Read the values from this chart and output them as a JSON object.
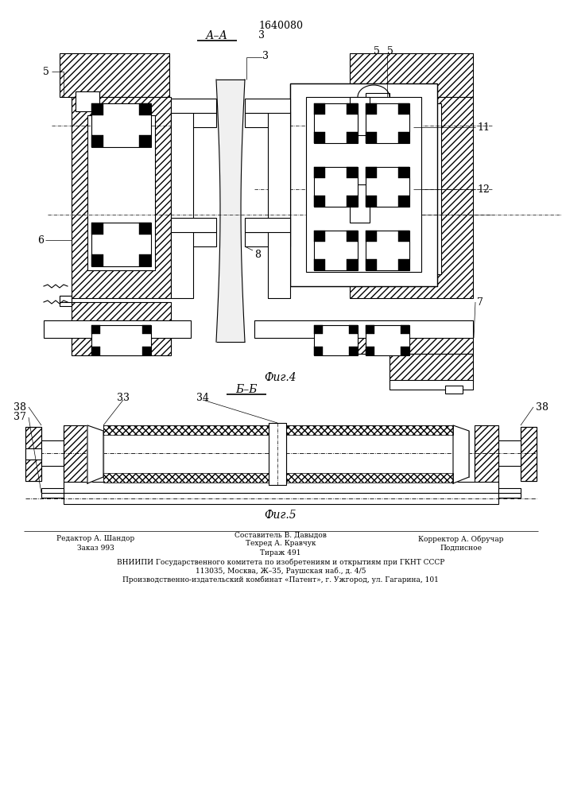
{
  "patent_number": "1640080",
  "fig4_caption": "Фиг.4",
  "fig5_caption": "Фиг.5",
  "editor_line1": "Редактор А. Шандор",
  "editor_line2": "Заказ 993",
  "composer_line1": "Составитель В. Давыдов",
  "composer_line2": "Техред А. Кравчук",
  "composer_line3": "Тираж 491",
  "corrector_line1": "Корректор А. Обручар",
  "corrector_line2": "Подписное",
  "org_line1": "ВНИИПИ Государственного комитета по изобретениям и открытиям при ГКНТ СССР",
  "org_line2": "113035, Москва, Ж–35, Раушская наб., д. 4/5",
  "org_line3": "Производственно-издательский комбинат «Патент», г. Ужгород, ул. Гагарина, 101",
  "bg_color": "#ffffff",
  "line_color": "#000000"
}
